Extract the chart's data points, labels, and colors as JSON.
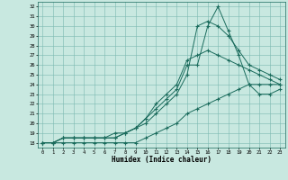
{
  "xlabel": "Humidex (Indice chaleur)",
  "xlim": [
    -0.5,
    23.5
  ],
  "ylim": [
    17.5,
    32.5
  ],
  "yticks": [
    18,
    19,
    20,
    21,
    22,
    23,
    24,
    25,
    26,
    27,
    28,
    29,
    30,
    31,
    32
  ],
  "xticks": [
    0,
    1,
    2,
    3,
    4,
    5,
    6,
    7,
    8,
    9,
    10,
    11,
    12,
    13,
    14,
    15,
    16,
    17,
    18,
    19,
    20,
    21,
    22,
    23
  ],
  "bg_color": "#c8e8e0",
  "grid_color": "#7ab8b0",
  "line_color": "#1a6b5c",
  "lines": [
    {
      "x": [
        0,
        1,
        2,
        3,
        4,
        5,
        6,
        7,
        8,
        9,
        10,
        11,
        12,
        13,
        14,
        15,
        16,
        17,
        18,
        19,
        20,
        21,
        22,
        23
      ],
      "y": [
        18,
        18,
        18.5,
        18.5,
        18.5,
        18.5,
        18.5,
        18.5,
        19,
        19.5,
        20.5,
        21.5,
        22.5,
        23.5,
        26,
        26,
        30,
        32,
        29.5,
        27,
        24,
        23,
        23,
        23.5
      ]
    },
    {
      "x": [
        0,
        1,
        2,
        3,
        4,
        5,
        6,
        7,
        8,
        9,
        10,
        11,
        12,
        13,
        14,
        15,
        16,
        17,
        18,
        19,
        20,
        21,
        22,
        23
      ],
      "y": [
        18,
        18,
        18.5,
        18.5,
        18.5,
        18.5,
        18.5,
        18.5,
        19,
        19.5,
        20,
        21,
        22,
        23,
        25,
        30,
        30.5,
        30,
        29,
        27.5,
        26,
        25.5,
        25,
        24.5
      ]
    },
    {
      "x": [
        0,
        1,
        2,
        3,
        4,
        5,
        6,
        7,
        8,
        9,
        10,
        11,
        12,
        13,
        14,
        15,
        16,
        17,
        18,
        19,
        20,
        21,
        22,
        23
      ],
      "y": [
        18,
        18,
        18.5,
        18.5,
        18.5,
        18.5,
        18.5,
        19,
        19,
        19.5,
        20.5,
        22,
        23,
        24,
        26.5,
        27,
        27.5,
        27,
        26.5,
        26,
        25.5,
        25,
        24.5,
        24
      ]
    },
    {
      "x": [
        0,
        1,
        2,
        3,
        4,
        5,
        6,
        7,
        8,
        9,
        10,
        11,
        12,
        13,
        14,
        15,
        16,
        17,
        18,
        19,
        20,
        21,
        22,
        23
      ],
      "y": [
        18,
        18,
        18,
        18,
        18,
        18,
        18,
        18,
        18,
        18,
        18.5,
        19,
        19.5,
        20,
        21,
        21.5,
        22,
        22.5,
        23,
        23.5,
        24,
        24,
        24,
        24
      ]
    }
  ]
}
